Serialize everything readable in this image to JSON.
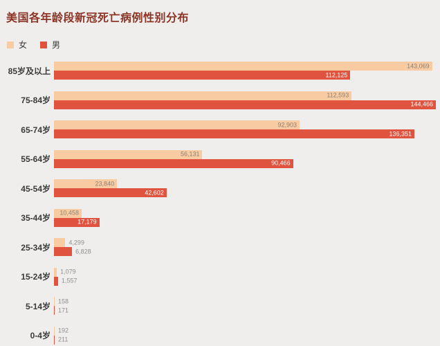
{
  "title": "美国各年龄段新冠死亡病例性别分布",
  "legend": {
    "female_label": "女",
    "male_label": "男"
  },
  "colors": {
    "background": "#efeeec",
    "female_bar": "#f8cba3",
    "male_bar": "#e0543f",
    "title_text": "#8c3527",
    "category_label": "#3a3a3a",
    "value_inside_female": "#8c8273",
    "value_inside_male": "#ffffff",
    "value_outside": "#8f8f8f"
  },
  "chart_data": {
    "type": "bar",
    "orientation": "horizontal",
    "title": "美国各年龄段新冠死亡病例性别分布",
    "categories": [
      "85岁及以上",
      "75-84岁",
      "65-74岁",
      "55-64岁",
      "45-54岁",
      "35-44岁",
      "25-34岁",
      "15-24岁",
      "5-14岁",
      "0-4岁"
    ],
    "series": [
      {
        "name": "女",
        "color": "#f8cba3",
        "values": [
          143069,
          112593,
          92903,
          56131,
          23840,
          10458,
          4299,
          1079,
          158,
          192
        ]
      },
      {
        "name": "男",
        "color": "#e0543f",
        "values": [
          112125,
          144466,
          136351,
          90466,
          42602,
          17179,
          6828,
          1557,
          171,
          211
        ]
      }
    ],
    "xlim": [
      0,
      146000
    ],
    "grid": false,
    "legend_position": "top-left",
    "value_label_format": "thousands-comma",
    "value_labels": {
      "female": [
        "143,069",
        "112,593",
        "92,903",
        "56,131",
        "23,840",
        "10,458",
        "4,299",
        "1,079",
        "158",
        "192"
      ],
      "male": [
        "112,125",
        "144,466",
        "136,351",
        "90,466",
        "42,602",
        "17,179",
        "6,828",
        "1,557",
        "171",
        "211"
      ]
    }
  }
}
